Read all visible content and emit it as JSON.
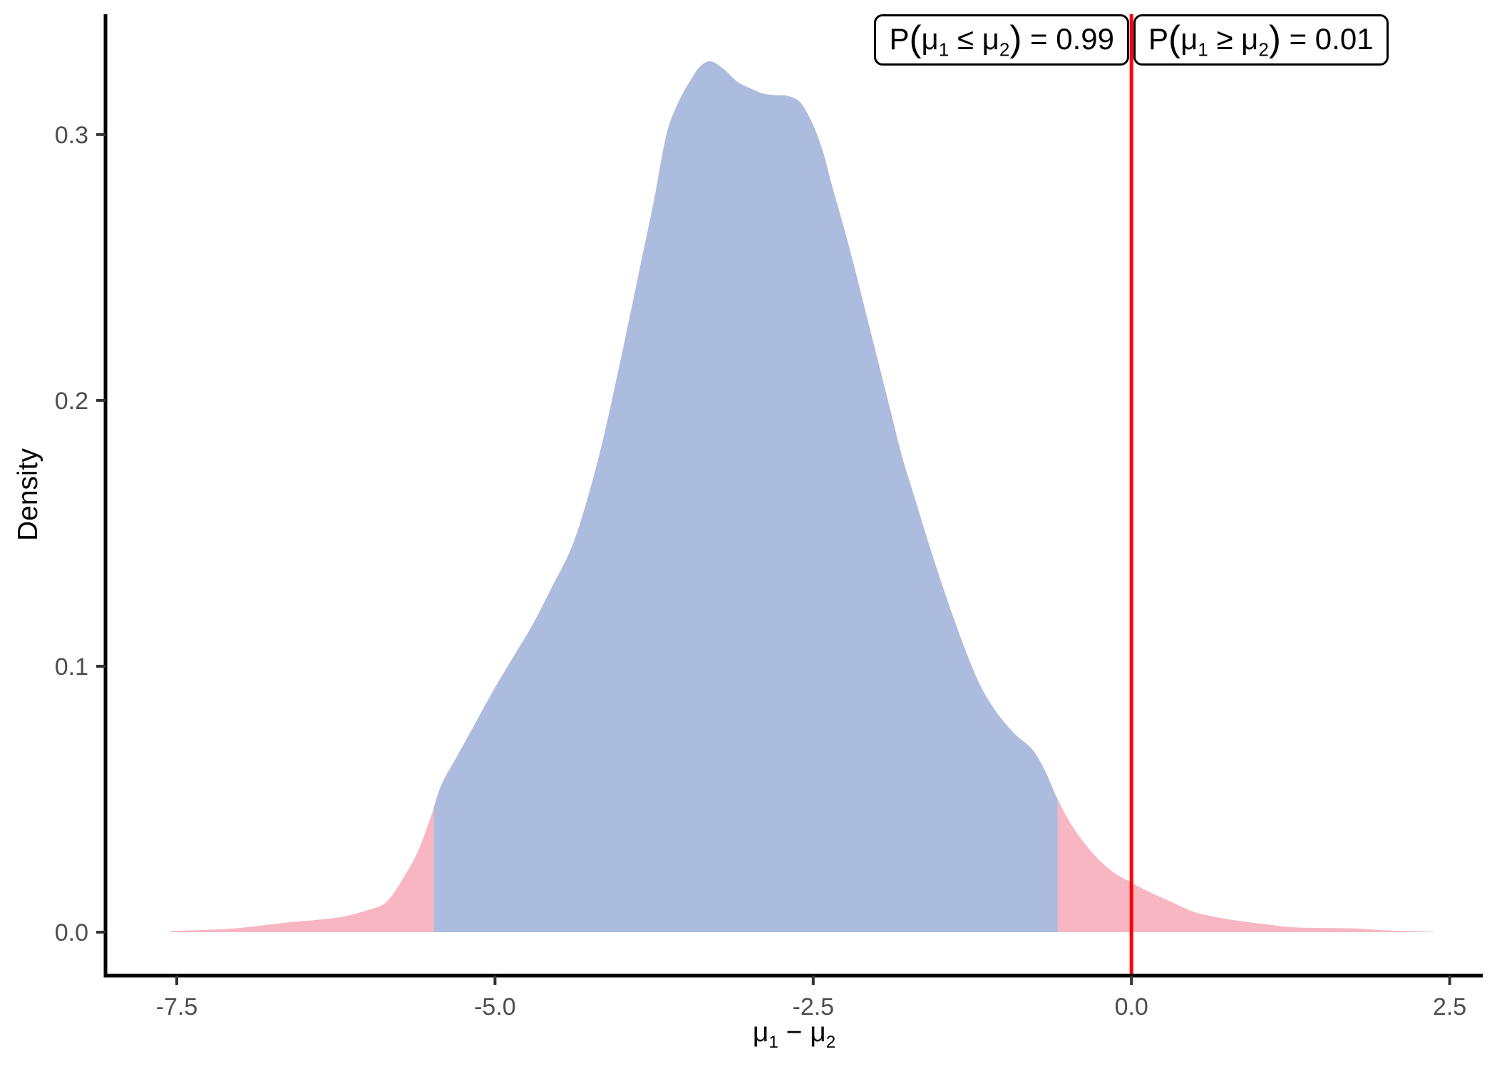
{
  "chart_data": {
    "type": "area",
    "subtype": "posterior-density",
    "title": "",
    "ylabel": "Density",
    "xlabel_parts": [
      {
        "text": "μ",
        "sub": "1"
      },
      {
        "text": " − "
      },
      {
        "text": "μ",
        "sub": "2"
      }
    ],
    "x_ticks": {
      "values": [
        -7.5,
        -5.0,
        -2.5,
        0.0,
        2.5
      ],
      "labels": [
        "-7.5",
        "-5.0",
        "-2.5",
        "0.0",
        "2.5"
      ]
    },
    "y_ticks": {
      "values": [
        0.0,
        0.1,
        0.2,
        0.3
      ],
      "labels": [
        "0.0",
        "0.1",
        "0.2",
        "0.3"
      ]
    },
    "xlim": [
      -8.06,
      2.76
    ],
    "ylim": [
      -0.01635,
      0.34525
    ],
    "grid": false,
    "legend": false,
    "reference_line_x": 0,
    "credible_interval": [
      -5.48,
      -0.58
    ],
    "annotations": [
      {
        "side": "left",
        "probability": 0.99,
        "parts": [
          {
            "text": "P("
          },
          {
            "text": "μ",
            "sub": "1"
          },
          {
            "text": " ≤ "
          },
          {
            "text": "μ",
            "sub": "2"
          },
          {
            "text": ") = 0.99"
          }
        ]
      },
      {
        "side": "right",
        "probability": 0.01,
        "parts": [
          {
            "text": "P("
          },
          {
            "text": "μ",
            "sub": "1"
          },
          {
            "text": " ≥ "
          },
          {
            "text": "μ",
            "sub": "2"
          },
          {
            "text": ") = 0.01"
          }
        ]
      }
    ],
    "series": [
      {
        "name": "posterior-density-of-mu1-minus-mu2",
        "points": [
          [
            -7.55,
            0.0004
          ],
          [
            -7.3,
            0.0008
          ],
          [
            -7.05,
            0.0014
          ],
          [
            -6.8,
            0.0027
          ],
          [
            -6.6,
            0.0038
          ],
          [
            -6.4,
            0.0046
          ],
          [
            -6.2,
            0.0058
          ],
          [
            -6.0,
            0.0083
          ],
          [
            -5.85,
            0.0115
          ],
          [
            -5.7,
            0.022
          ],
          [
            -5.6,
            0.031
          ],
          [
            -5.5,
            0.044
          ],
          [
            -5.42,
            0.0555
          ],
          [
            -5.3,
            0.066
          ],
          [
            -5.15,
            0.079
          ],
          [
            -5.0,
            0.092
          ],
          [
            -4.85,
            0.104
          ],
          [
            -4.7,
            0.116
          ],
          [
            -4.55,
            0.13
          ],
          [
            -4.4,
            0.1445
          ],
          [
            -4.28,
            0.162
          ],
          [
            -4.16,
            0.1835
          ],
          [
            -4.05,
            0.207
          ],
          [
            -3.95,
            0.2295
          ],
          [
            -3.85,
            0.2525
          ],
          [
            -3.75,
            0.2755
          ],
          [
            -3.65,
            0.3005
          ],
          [
            -3.55,
            0.313
          ],
          [
            -3.45,
            0.3215
          ],
          [
            -3.38,
            0.326
          ],
          [
            -3.3,
            0.3275
          ],
          [
            -3.2,
            0.3245
          ],
          [
            -3.1,
            0.32
          ],
          [
            -3.0,
            0.3175
          ],
          [
            -2.9,
            0.3155
          ],
          [
            -2.8,
            0.3148
          ],
          [
            -2.7,
            0.3145
          ],
          [
            -2.6,
            0.312
          ],
          [
            -2.5,
            0.3035
          ],
          [
            -2.42,
            0.293
          ],
          [
            -2.36,
            0.2821
          ],
          [
            -2.28,
            0.2685
          ],
          [
            -2.2,
            0.2545
          ],
          [
            -2.1,
            0.2355
          ],
          [
            -2.0,
            0.2165
          ],
          [
            -1.9,
            0.1975
          ],
          [
            -1.8,
            0.1785
          ],
          [
            -1.7,
            0.163
          ],
          [
            -1.61,
            0.1488
          ],
          [
            -1.5,
            0.1325
          ],
          [
            -1.4,
            0.1185
          ],
          [
            -1.3,
            0.1055
          ],
          [
            -1.2,
            0.094
          ],
          [
            -1.1,
            0.0855
          ],
          [
            -1.0,
            0.079
          ],
          [
            -0.9,
            0.0738
          ],
          [
            -0.78,
            0.0688
          ],
          [
            -0.68,
            0.0608
          ],
          [
            -0.58,
            0.05
          ],
          [
            -0.45,
            0.0388
          ],
          [
            -0.3,
            0.0295
          ],
          [
            -0.15,
            0.0228
          ],
          [
            0.0,
            0.0186
          ],
          [
            0.15,
            0.0149
          ],
          [
            0.3,
            0.0117
          ],
          [
            0.48,
            0.0078
          ],
          [
            0.65,
            0.0058
          ],
          [
            0.85,
            0.0042
          ],
          [
            1.05,
            0.003
          ],
          [
            1.25,
            0.0019
          ],
          [
            1.45,
            0.0016
          ],
          [
            1.65,
            0.0015
          ],
          [
            1.8,
            0.0013
          ],
          [
            1.95,
            0.0008
          ],
          [
            2.1,
            0.0005
          ],
          [
            2.25,
            0.0003
          ],
          [
            2.38,
            0.0001
          ]
        ]
      }
    ],
    "colors": {
      "interval_fill": "#acbcde",
      "tail_fill": "#f7b6c2",
      "reference_line": "#ff0000",
      "axis_line": "#000000",
      "tick_mark": "#333333",
      "tick_label": "#4d4d4d",
      "axis_title": "#000000",
      "annotation_border": "#000000",
      "annotation_bg": "#ffffff",
      "annotation_text": "#000000",
      "background": "#ffffff"
    }
  }
}
